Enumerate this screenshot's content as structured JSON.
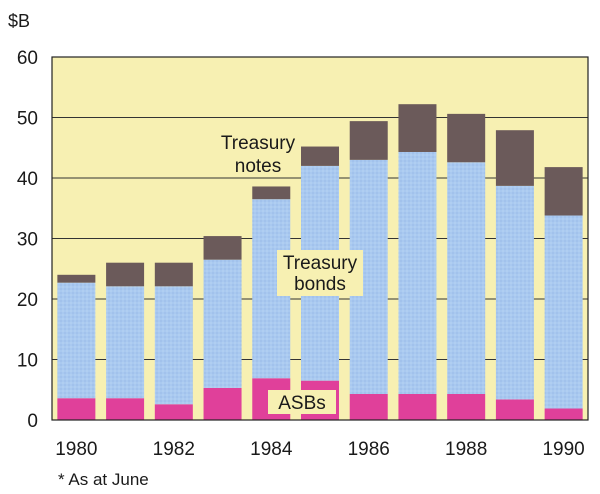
{
  "chart_data": {
    "type": "bar",
    "stacked": true,
    "unit_label": "$B",
    "categories": [
      "1980",
      "1981",
      "1982",
      "1983",
      "1984",
      "1985",
      "1986",
      "1987",
      "1988",
      "1989",
      "1990"
    ],
    "x_tick_labels": [
      "1980",
      "1982",
      "1984",
      "1986",
      "1988",
      "1990"
    ],
    "y_ticks": [
      0,
      10,
      20,
      30,
      40,
      50,
      60
    ],
    "ylim": [
      0,
      60
    ],
    "grid": true,
    "series": [
      {
        "name": "ASBs",
        "color": "#e0409a",
        "values": [
          3.6,
          3.6,
          2.6,
          5.3,
          6.9,
          6.5,
          4.3,
          4.3,
          4.3,
          3.4,
          1.9
        ]
      },
      {
        "name": "Treasury bonds",
        "color": "#a9c9f0",
        "values": [
          19.1,
          18.5,
          19.5,
          21.2,
          29.6,
          35.5,
          38.7,
          40.0,
          38.3,
          35.3,
          31.9
        ]
      },
      {
        "name": "Treasury notes",
        "color": "#6b5a5a",
        "values": [
          1.3,
          3.9,
          3.9,
          3.9,
          2.1,
          3.2,
          6.4,
          7.9,
          8.0,
          9.2,
          8.0
        ]
      }
    ],
    "annotations": {
      "notes": [
        "Treasury",
        "notes"
      ],
      "bonds": [
        "Treasury",
        "bonds"
      ],
      "asbs": "ASBs"
    },
    "colors": {
      "plot_background": "#f7f0b2",
      "grid": "#333333",
      "axis": "#222222"
    },
    "footnote": "* As at June"
  }
}
